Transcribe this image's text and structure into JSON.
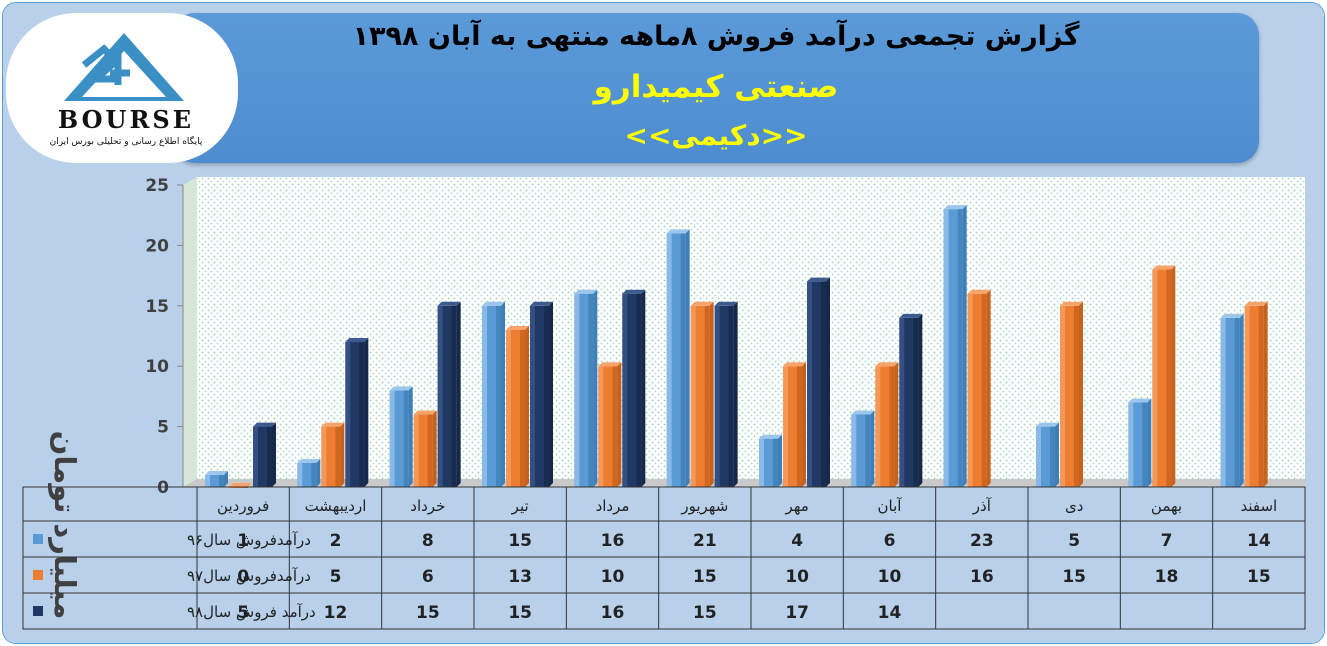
{
  "header": {
    "title": "گزارش تجمعی درآمد فروش ۸ماهه منتهی به آبان ۱۳۹۸",
    "company": "صنعتی کیمیدارو",
    "symbol": "<<دکیمی>>"
  },
  "logo": {
    "word": "BOURSE",
    "tagline": "پایگاه اطلاع رسانی و تحلیلی بورس ایران"
  },
  "colors": {
    "series96": "#5b9bd5",
    "series97": "#ed7d31",
    "series98": "#1f3864",
    "banner": "#4d8dcf",
    "background": "#b8d0ea"
  },
  "chart_data": {
    "type": "bar",
    "ylabel": "میلیارد تومان",
    "ylim": [
      0,
      25
    ],
    "yticks": [
      0,
      5,
      10,
      15,
      20,
      25
    ],
    "grid": false,
    "legend": "data table below chart",
    "categories": [
      "فروردین",
      "اردیبهشت",
      "خرداد",
      "تیر",
      "مرداد",
      "شهریور",
      "مهر",
      "آبان",
      "آذر",
      "دی",
      "بهمن",
      "اسفند"
    ],
    "series": [
      {
        "name": "درآمدفروش سال۹۶",
        "values": [
          1,
          2,
          8,
          15,
          16,
          21,
          4,
          6,
          23,
          5,
          7,
          14
        ]
      },
      {
        "name": "درآمدفروش سال۹۷",
        "values": [
          0,
          5,
          6,
          13,
          10,
          15,
          10,
          10,
          16,
          15,
          18,
          15
        ]
      },
      {
        "name": "درآمد فروش سال۹۸",
        "values": [
          5,
          12,
          15,
          15,
          16,
          15,
          17,
          14,
          null,
          null,
          null,
          null
        ]
      }
    ]
  }
}
